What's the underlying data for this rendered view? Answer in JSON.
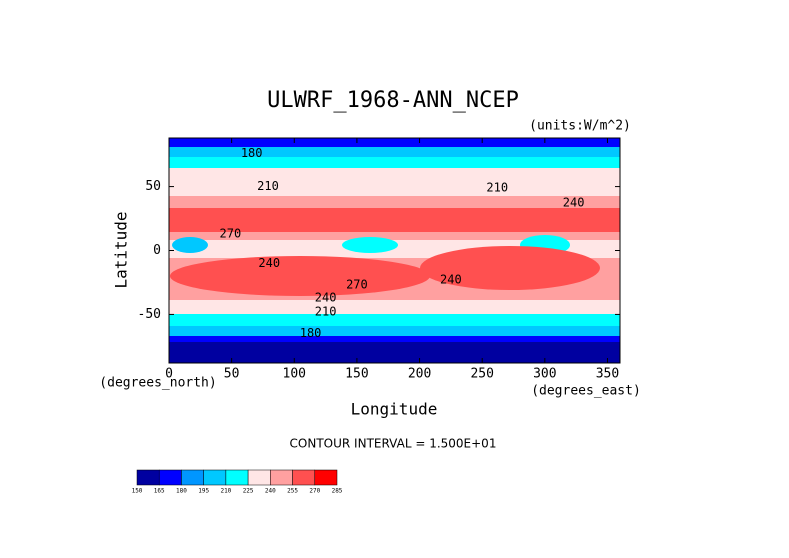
{
  "chart_data": {
    "type": "contour",
    "title": "ULWRF_1968-ANN_NCEP",
    "subtitle": "(units:W/m^2)",
    "x_label": "Longitude",
    "y_label": "Latitude",
    "x_units": "(degrees_east)",
    "y_units": "(degrees_north)",
    "note": "CONTOUR INTERVAL = 1.500E+01",
    "xlim": [
      0,
      360
    ],
    "ylim": [
      -88,
      88
    ],
    "xticks": [
      0,
      50,
      100,
      150,
      200,
      250,
      300,
      350
    ],
    "yticks": [
      -50,
      0,
      50
    ],
    "contour_labels": [
      {
        "text": "180",
        "x": 66,
        "y": 76
      },
      {
        "text": "210",
        "x": 79,
        "y": 50
      },
      {
        "text": "210",
        "x": 262,
        "y": 49
      },
      {
        "text": "240",
        "x": 323,
        "y": 37
      },
      {
        "text": "270",
        "x": 49,
        "y": 13
      },
      {
        "text": "240",
        "x": 80,
        "y": -10
      },
      {
        "text": "270",
        "x": 150,
        "y": -27
      },
      {
        "text": "240",
        "x": 225,
        "y": -23
      },
      {
        "text": "240",
        "x": 125,
        "y": -37
      },
      {
        "text": "210",
        "x": 125,
        "y": -48
      },
      {
        "text": "180",
        "x": 113,
        "y": -65
      }
    ],
    "colorbar": {
      "levels": [
        150,
        165,
        180,
        195,
        210,
        225,
        240,
        255,
        270,
        285
      ],
      "colors": [
        "#0000a0",
        "#0000ff",
        "#0096ff",
        "#00c8ff",
        "#00ffff",
        "#ffe6e6",
        "#ffa0a0",
        "#ff5050",
        "#ff0000"
      ]
    }
  }
}
